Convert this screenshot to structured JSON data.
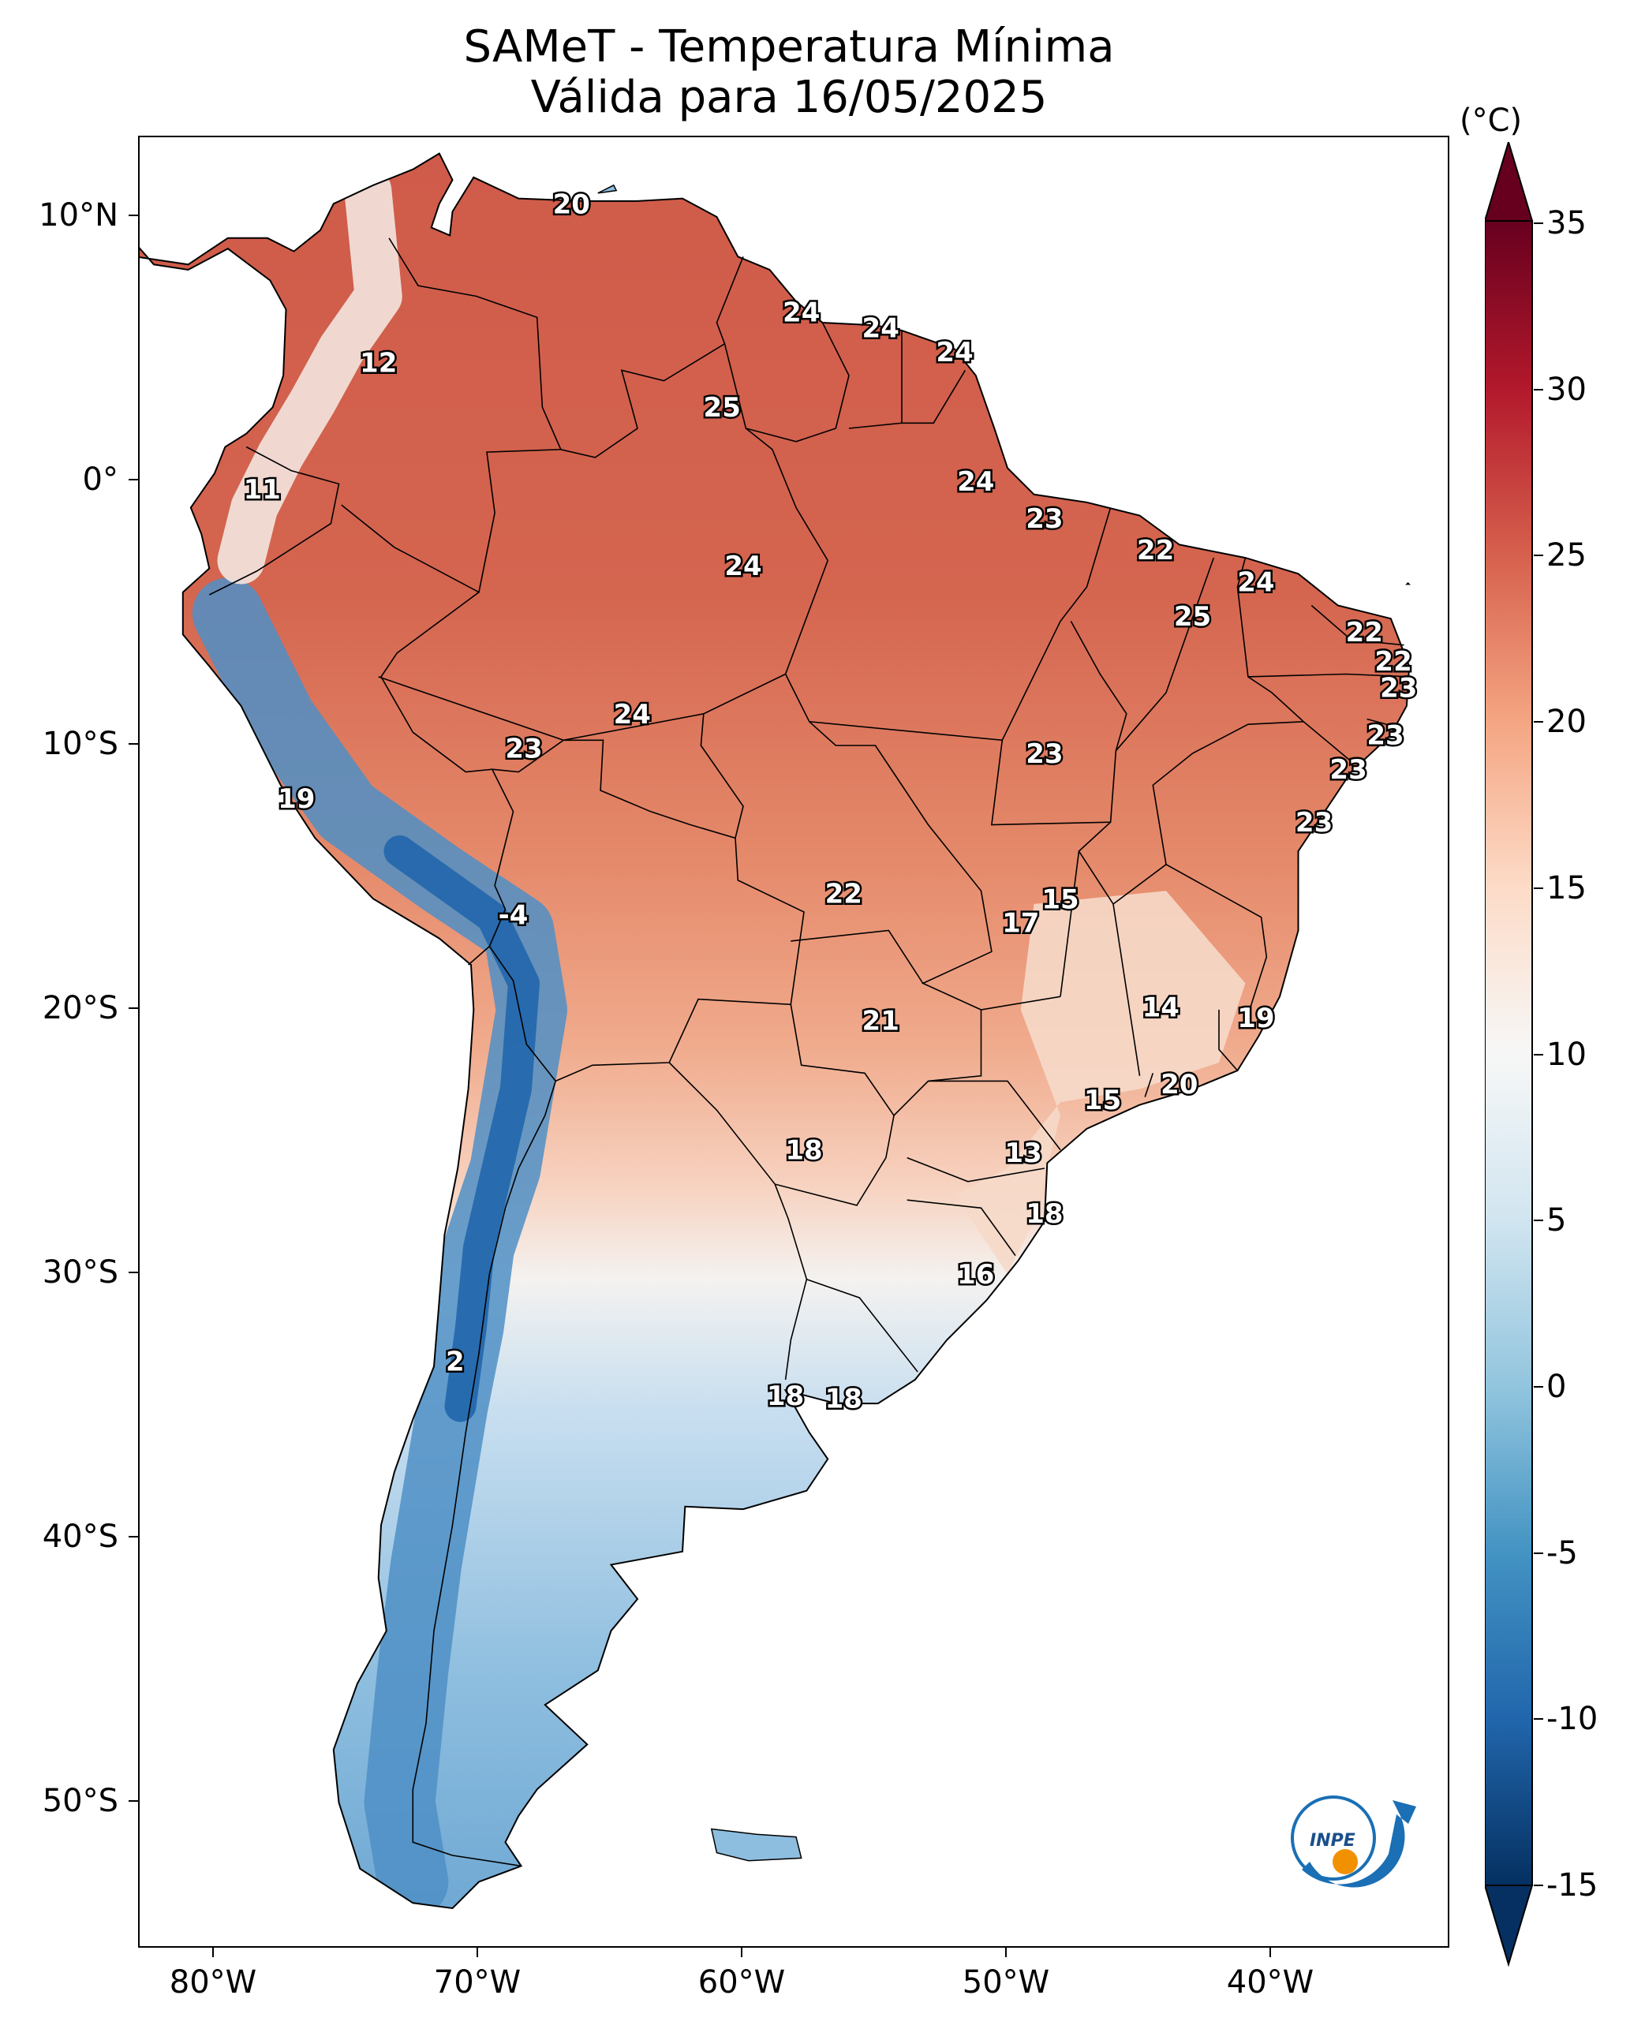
{
  "title": {
    "line1": "SAMeT - Temperatura Mínima",
    "line2": "Válida para 16/05/2025"
  },
  "colorbar": {
    "unit": "(°C)",
    "ticks": [
      "35",
      "30",
      "25",
      "20",
      "15",
      "10",
      "5",
      "0",
      "-5",
      "-10",
      "-15"
    ],
    "range": [
      -15,
      35
    ],
    "extend": "both",
    "colormap": [
      "#053061",
      "#2166ac",
      "#4393c3",
      "#92c5de",
      "#d1e5f0",
      "#f7f7f7",
      "#fddbc7",
      "#f4a582",
      "#d6604d",
      "#b2182b",
      "#67001f"
    ]
  },
  "axes": {
    "lat_ticks": [
      "10°N",
      "0°",
      "10°S",
      "20°S",
      "30°S",
      "40°S",
      "50°S"
    ],
    "lon_ticks": [
      "80°W",
      "70°W",
      "60°W",
      "50°W",
      "40°W"
    ]
  },
  "logo": {
    "text": "INPE",
    "icon": "inpe-logo-icon"
  },
  "map_labels": [
    {
      "value": "20",
      "lon": -66.5,
      "lat": 10.5
    },
    {
      "value": "12",
      "lon": -73.8,
      "lat": 4.5
    },
    {
      "value": "11",
      "lon": -78.2,
      "lat": -0.3
    },
    {
      "value": "24",
      "lon": -57.8,
      "lat": 6.4
    },
    {
      "value": "24",
      "lon": -54.8,
      "lat": 5.8
    },
    {
      "value": "24",
      "lon": -52.0,
      "lat": 4.9
    },
    {
      "value": "25",
      "lon": -60.8,
      "lat": 2.8
    },
    {
      "value": "24",
      "lon": -51.2,
      "lat": 0.0
    },
    {
      "value": "23",
      "lon": -48.6,
      "lat": -1.4
    },
    {
      "value": "22",
      "lon": -44.4,
      "lat": -2.6
    },
    {
      "value": "24",
      "lon": -40.6,
      "lat": -3.8
    },
    {
      "value": "25",
      "lon": -43.0,
      "lat": -5.1
    },
    {
      "value": "24",
      "lon": -60.0,
      "lat": -3.2
    },
    {
      "value": "22",
      "lon": -36.5,
      "lat": -5.7
    },
    {
      "value": "22",
      "lon": -35.4,
      "lat": -6.8
    },
    {
      "value": "23",
      "lon": -35.2,
      "lat": -7.8
    },
    {
      "value": "23",
      "lon": -35.7,
      "lat": -9.6
    },
    {
      "value": "23",
      "lon": -37.1,
      "lat": -10.9
    },
    {
      "value": "23",
      "lon": -38.4,
      "lat": -12.9
    },
    {
      "value": "24",
      "lon": -64.2,
      "lat": -8.8
    },
    {
      "value": "23",
      "lon": -68.3,
      "lat": -10.1
    },
    {
      "value": "23",
      "lon": -48.6,
      "lat": -10.3
    },
    {
      "value": "19",
      "lon": -76.9,
      "lat": -12.0
    },
    {
      "value": "-4",
      "lon": -68.7,
      "lat": -16.4
    },
    {
      "value": "22",
      "lon": -56.2,
      "lat": -15.6
    },
    {
      "value": "15",
      "lon": -48.0,
      "lat": -15.8
    },
    {
      "value": "17",
      "lon": -49.5,
      "lat": -16.7
    },
    {
      "value": "14",
      "lon": -44.2,
      "lat": -19.9
    },
    {
      "value": "19",
      "lon": -40.6,
      "lat": -20.3
    },
    {
      "value": "21",
      "lon": -54.8,
      "lat": -20.4
    },
    {
      "value": "20",
      "lon": -43.5,
      "lat": -22.8
    },
    {
      "value": "15",
      "lon": -46.4,
      "lat": -23.4
    },
    {
      "value": "18",
      "lon": -57.7,
      "lat": -25.3
    },
    {
      "value": "13",
      "lon": -49.4,
      "lat": -25.4
    },
    {
      "value": "18",
      "lon": -48.6,
      "lat": -27.7
    },
    {
      "value": "16",
      "lon": -51.2,
      "lat": -30.0
    },
    {
      "value": "2",
      "lon": -70.9,
      "lat": -33.3
    },
    {
      "value": "18",
      "lon": -58.4,
      "lat": -34.6
    },
    {
      "value": "18",
      "lon": -56.2,
      "lat": -34.7
    }
  ]
}
